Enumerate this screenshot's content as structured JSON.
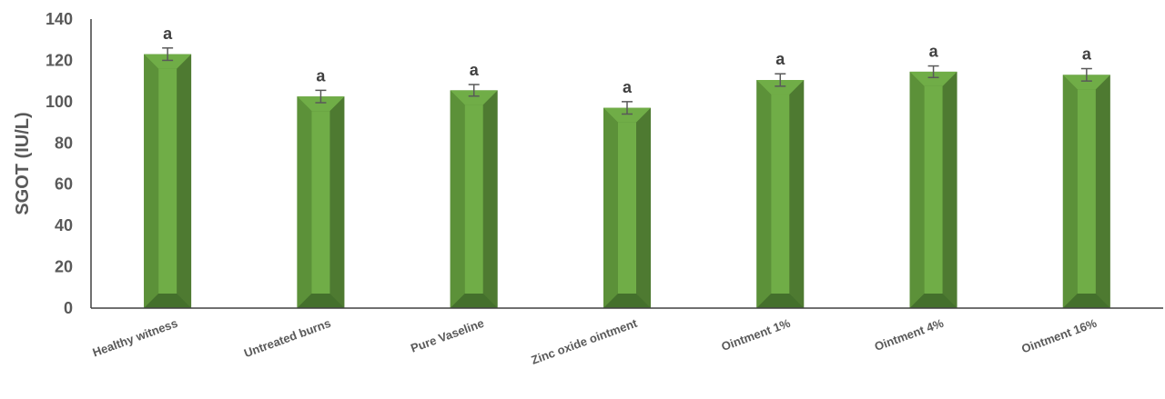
{
  "chart_data": {
    "type": "bar",
    "title": "",
    "xlabel": "",
    "ylabel": "SGOT (IU/L)",
    "ylim": [
      0,
      140
    ],
    "yticks": [
      0,
      20,
      40,
      60,
      80,
      100,
      120,
      140
    ],
    "grid": false,
    "legend": "none",
    "categories": [
      "Healthy witness",
      "Untreated burns",
      "Pure Vaseline",
      "Zinc oxide ointment",
      "Ointment 1%",
      "Ointment 4%",
      "Ointment 16%"
    ],
    "values": [
      123,
      102.5,
      105.5,
      97,
      110.5,
      114.5,
      113
    ],
    "errors": [
      3,
      3,
      2.8,
      3,
      3,
      2.8,
      3
    ],
    "labels": [
      "a",
      "a",
      "a",
      "a",
      "a",
      "a",
      "a"
    ],
    "colors": {
      "bar_front": "#70ad47",
      "bar_side": "#4e7a31",
      "bar_bevel": "#5c9139",
      "axis": "#404040",
      "error": "#595959"
    }
  }
}
